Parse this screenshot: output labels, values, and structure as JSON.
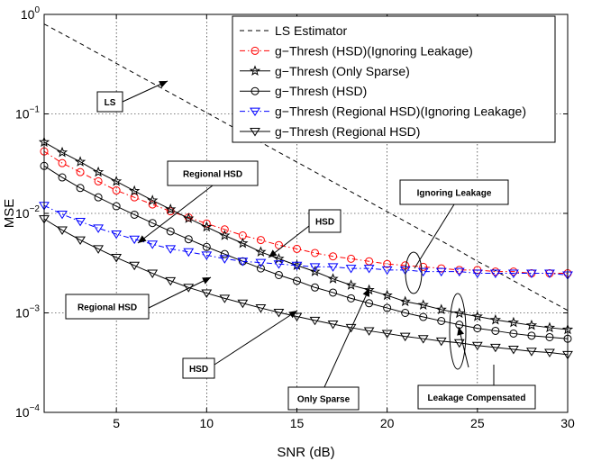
{
  "chart_data": {
    "type": "line",
    "title": "",
    "xlabel": "SNR (dB)",
    "ylabel": "MSE",
    "yscale": "log",
    "xlim": [
      1,
      30
    ],
    "ylim": [
      0.0001,
      1
    ],
    "grid": true,
    "legend_position": "top-right",
    "x_ticks": [
      "5",
      "10",
      "15",
      "20",
      "25",
      "30"
    ],
    "y_ticks": [
      {
        "base": "10",
        "exp": "0"
      },
      {
        "base": "10",
        "exp": "−1"
      },
      {
        "base": "10",
        "exp": "−2"
      },
      {
        "base": "10",
        "exp": "−3"
      },
      {
        "base": "10",
        "exp": "−4"
      }
    ],
    "x": [
      1,
      2,
      3,
      4,
      5,
      6,
      7,
      8,
      9,
      10,
      11,
      12,
      13,
      14,
      15,
      16,
      17,
      18,
      19,
      20,
      21,
      22,
      23,
      24,
      25,
      26,
      27,
      28,
      29,
      30
    ],
    "series": [
      {
        "name": "LS Estimator",
        "color": "#000000",
        "dash": "dashed",
        "marker": "none",
        "values": [
          0.8,
          0.64,
          0.51,
          0.405,
          0.322,
          0.256,
          0.204,
          0.162,
          0.129,
          0.103,
          0.0818,
          0.065,
          0.0518,
          0.0412,
          0.0328,
          0.0261,
          0.0207,
          0.0165,
          0.0131,
          0.0104,
          0.0083,
          0.0066,
          0.0053,
          0.0042,
          0.0033,
          0.00265,
          0.0021,
          0.00167,
          0.00133,
          0.00106
        ]
      },
      {
        "name": "g−Thresh (HSD)(Ignoring Leakage)",
        "color": "#ff0000",
        "dash": "dashdot",
        "marker": "circle",
        "values": [
          0.042,
          0.032,
          0.026,
          0.021,
          0.017,
          0.0145,
          0.0123,
          0.0105,
          0.0091,
          0.0079,
          0.0069,
          0.006,
          0.0054,
          0.0048,
          0.0044,
          0.004,
          0.0037,
          0.0035,
          0.0033,
          0.0031,
          0.003,
          0.0029,
          0.0028,
          0.0027,
          0.0027,
          0.0026,
          0.0026,
          0.0025,
          0.0025,
          0.0025
        ]
      },
      {
        "name": "g−Thresh (Only Sparse)",
        "color": "#000000",
        "dash": "solid",
        "marker": "star",
        "values": [
          0.052,
          0.041,
          0.033,
          0.026,
          0.021,
          0.0168,
          0.0135,
          0.011,
          0.0089,
          0.0073,
          0.006,
          0.005,
          0.0041,
          0.0035,
          0.003,
          0.0026,
          0.0022,
          0.0019,
          0.0017,
          0.0015,
          0.0013,
          0.0012,
          0.00108,
          0.00099,
          0.00092,
          0.00085,
          0.0008,
          0.00075,
          0.00071,
          0.00068
        ]
      },
      {
        "name": "g−Thresh (HSD)",
        "color": "#000000",
        "dash": "solid",
        "marker": "circle",
        "values": [
          0.03,
          0.023,
          0.018,
          0.0145,
          0.0118,
          0.0097,
          0.008,
          0.0066,
          0.0055,
          0.0046,
          0.0039,
          0.0033,
          0.0028,
          0.0024,
          0.0021,
          0.0018,
          0.0016,
          0.0014,
          0.00125,
          0.00112,
          0.001,
          0.00091,
          0.00083,
          0.00076,
          0.0007,
          0.00066,
          0.00062,
          0.00059,
          0.00057,
          0.00055
        ]
      },
      {
        "name": "g−Thresh (Regional HSD)(Ignoring Leakage)",
        "color": "#0000ff",
        "dash": "dashdot",
        "marker": "triangle-down",
        "values": [
          0.012,
          0.0098,
          0.0083,
          0.0071,
          0.0062,
          0.0055,
          0.0049,
          0.0044,
          0.0041,
          0.0038,
          0.0035,
          0.0033,
          0.0032,
          0.0031,
          0.003,
          0.0029,
          0.0029,
          0.0028,
          0.0028,
          0.0027,
          0.0027,
          0.0026,
          0.0026,
          0.0026,
          0.0025,
          0.0025,
          0.0025,
          0.0025,
          0.0025,
          0.0024
        ]
      },
      {
        "name": "g−Thresh (Regional HSD)",
        "color": "#000000",
        "dash": "solid",
        "marker": "triangle-down",
        "values": [
          0.0088,
          0.0068,
          0.0054,
          0.0044,
          0.0036,
          0.003,
          0.0025,
          0.0021,
          0.0018,
          0.00158,
          0.0014,
          0.00125,
          0.00112,
          0.00101,
          0.00092,
          0.00084,
          0.00077,
          0.00071,
          0.00066,
          0.00062,
          0.00058,
          0.00055,
          0.00052,
          0.0005,
          0.00047,
          0.00045,
          0.00043,
          0.00041,
          0.0004,
          0.00038
        ]
      }
    ],
    "annotations": [
      {
        "label": "LS"
      },
      {
        "label": "Regional HSD"
      },
      {
        "label": "HSD"
      },
      {
        "label": "Ignoring Leakage"
      },
      {
        "label": "Regional HSD"
      },
      {
        "label": "HSD"
      },
      {
        "label": "Only Sparse"
      },
      {
        "label": "Leakage Compensated"
      }
    ]
  }
}
